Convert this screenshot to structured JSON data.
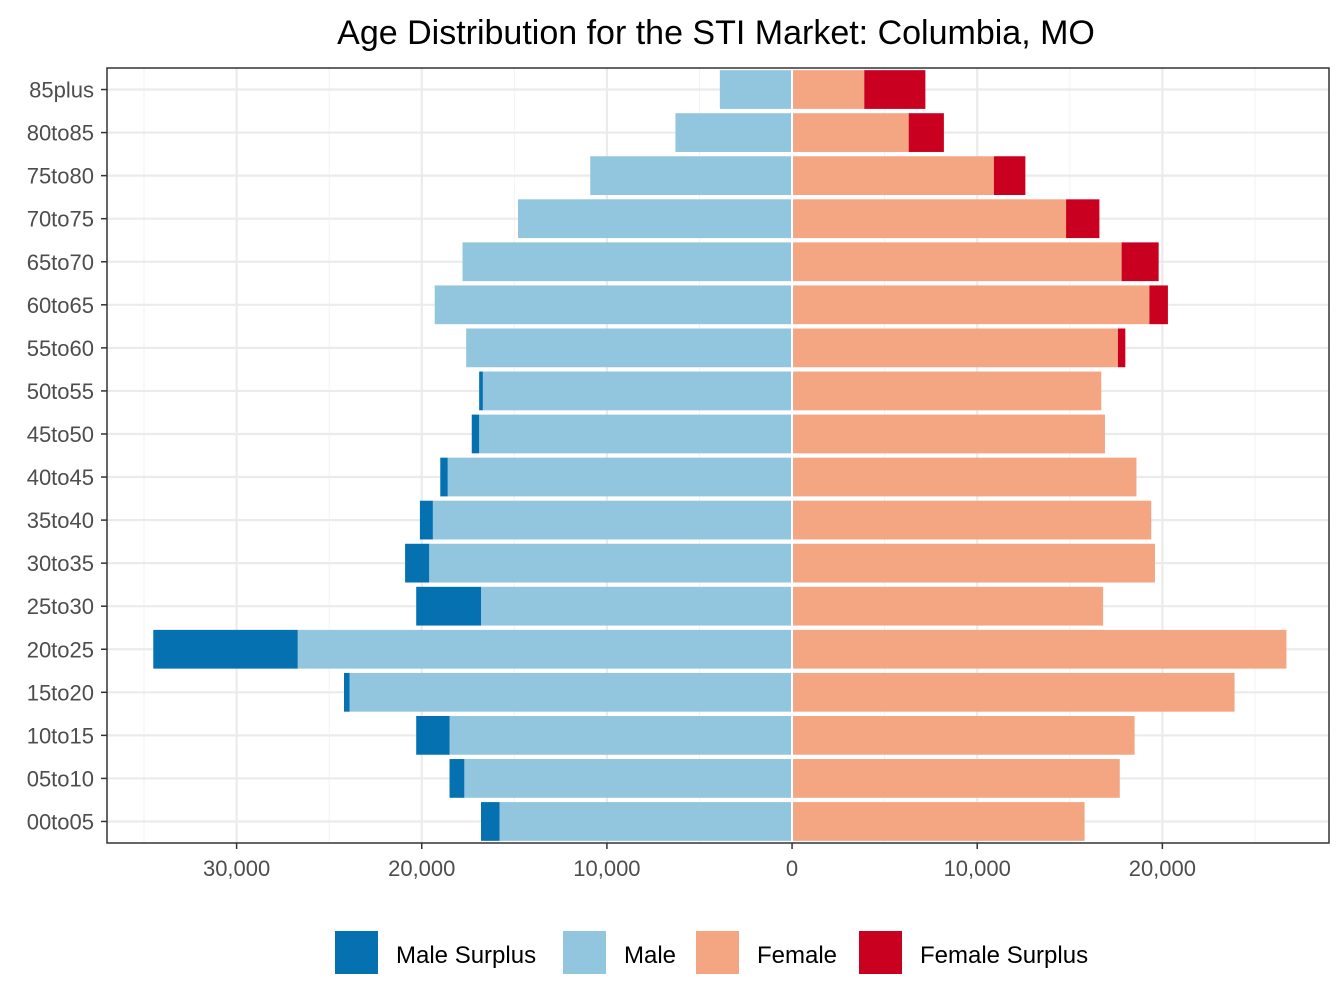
{
  "chart_data": {
    "type": "bar",
    "orientation": "horizontal-diverging",
    "title": "Age Distribution for the STI Market: Columbia, MO",
    "xlabel": "",
    "ylabel": "",
    "xlim": [
      -37000,
      29000
    ],
    "x_ticks": [
      -30000,
      -20000,
      -10000,
      0,
      10000,
      20000
    ],
    "x_tick_labels": [
      "30,000",
      "20,000",
      "10,000",
      "0",
      "10,000",
      "20,000"
    ],
    "categories": [
      "00to05",
      "05to10",
      "10to15",
      "15to20",
      "20to25",
      "25to30",
      "30to35",
      "35to40",
      "40to45",
      "45to50",
      "50to55",
      "55to60",
      "60to65",
      "65to70",
      "70to75",
      "75to80",
      "80to85",
      "85plus"
    ],
    "series": [
      {
        "name": "Male Surplus",
        "color": "#0571b0",
        "side": "left",
        "values": [
          1000,
          800,
          1800,
          300,
          7800,
          3500,
          1300,
          700,
          400,
          400,
          200,
          0,
          0,
          0,
          0,
          0,
          0,
          0
        ]
      },
      {
        "name": "Male",
        "color": "#92c5de",
        "side": "left",
        "values": [
          15800,
          17700,
          18500,
          23900,
          26700,
          16800,
          19600,
          19400,
          18600,
          16900,
          16700,
          17600,
          19300,
          17800,
          14800,
          10900,
          6300,
          3900
        ]
      },
      {
        "name": "Female",
        "color": "#f4a582",
        "side": "right",
        "values": [
          15800,
          17700,
          18500,
          23900,
          26700,
          16800,
          19600,
          19400,
          18600,
          16900,
          16700,
          17600,
          19300,
          17800,
          14800,
          10900,
          6300,
          3900
        ]
      },
      {
        "name": "Female Surplus",
        "color": "#ca0020",
        "side": "right",
        "values": [
          0,
          0,
          0,
          0,
          0,
          0,
          0,
          0,
          0,
          0,
          0,
          400,
          1000,
          2000,
          1800,
          1700,
          1900,
          3300
        ]
      }
    ],
    "legend_position": "bottom",
    "grid": true
  }
}
